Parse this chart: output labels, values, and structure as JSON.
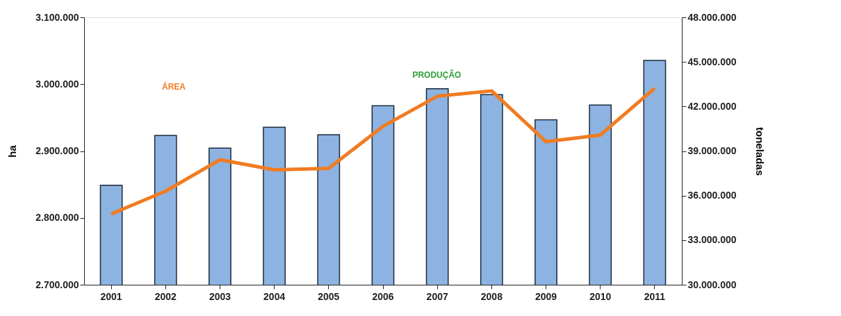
{
  "chart_data": {
    "type": "bar",
    "ylabel": "ha",
    "y2label": "toneladas",
    "categories": [
      "2001",
      "2002",
      "2003",
      "2004",
      "2005",
      "2006",
      "2007",
      "2008",
      "2009",
      "2010",
      "2011"
    ],
    "series": [
      {
        "name": "PRODUÇÃO",
        "axis": "y2",
        "color": "#8db3e2",
        "values": [
          36700000,
          40050000,
          39200000,
          40600000,
          40100000,
          42050000,
          43200000,
          42800000,
          41100000,
          42100000,
          45100000
        ]
      },
      {
        "name": "ÁREA",
        "type": "line",
        "axis": "y",
        "color": "#f07c22",
        "values": [
          2806000,
          2840000,
          2887000,
          2872000,
          2874000,
          2937000,
          2982000,
          2990000,
          2914000,
          2924000,
          2994000
        ]
      }
    ],
    "ylim": [
      2700000,
      3100000
    ],
    "yticks": [
      {
        "value": 2700000,
        "label": "2.700.000"
      },
      {
        "value": 2800000,
        "label": "2.800.000"
      },
      {
        "value": 2900000,
        "label": "2.900.000"
      },
      {
        "value": 3000000,
        "label": "3.000.000"
      },
      {
        "value": 3100000,
        "label": "3.100.000"
      }
    ],
    "y2lim": [
      30000000,
      48000000
    ],
    "y2ticks": [
      {
        "value": 30000000,
        "label": "30.000.000"
      },
      {
        "value": 33000000,
        "label": "33.000.000"
      },
      {
        "value": 36000000,
        "label": "36.000.000"
      },
      {
        "value": 39000000,
        "label": "39.000.000"
      },
      {
        "value": 42000000,
        "label": "42.000.000"
      },
      {
        "value": 45000000,
        "label": "45.000.000"
      },
      {
        "value": 48000000,
        "label": "48.000.000"
      }
    ],
    "grid": false
  }
}
